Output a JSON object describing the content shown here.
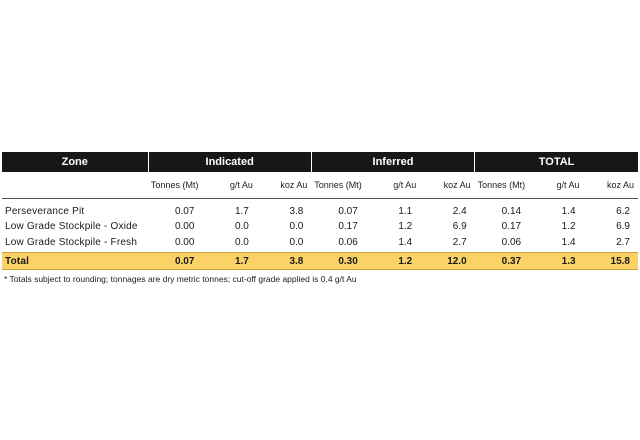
{
  "header": {
    "zone": "Zone",
    "groups": [
      "Indicated",
      "Inferred",
      "TOTAL"
    ],
    "subheaders": [
      "Tonnes (Mt)",
      "g/t Au",
      "koz Au",
      "Tonnes (Mt)",
      "g/t Au",
      "koz Au",
      "Tonnes (Mt)",
      "g/t Au",
      "koz Au"
    ]
  },
  "rows": [
    {
      "zone": "Perseverance Pit",
      "values": [
        "0.07",
        "1.7",
        "3.8",
        "0.07",
        "1.1",
        "2.4",
        "0.14",
        "1.4",
        "6.2"
      ]
    },
    {
      "zone": "Low Grade Stockpile - Oxide",
      "values": [
        "0.00",
        "0.0",
        "0.0",
        "0.17",
        "1.2",
        "6.9",
        "0.17",
        "1.2",
        "6.9"
      ]
    },
    {
      "zone": "Low Grade Stockpile - Fresh",
      "values": [
        "0.00",
        "0.0",
        "0.0",
        "0.06",
        "1.4",
        "2.7",
        "0.06",
        "1.4",
        "2.7"
      ]
    }
  ],
  "total": {
    "zone": "Total",
    "values": [
      "0.07",
      "1.7",
      "3.8",
      "0.30",
      "1.2",
      "12.0",
      "0.37",
      "1.3",
      "15.8"
    ]
  },
  "footnote": "* Totals subject to rounding; tonnages are dry metric tonnes; cut-off grade applied is 0.4 g/t Au",
  "colors": {
    "header_bg": "#171717",
    "total_bg": "#fbd266"
  }
}
